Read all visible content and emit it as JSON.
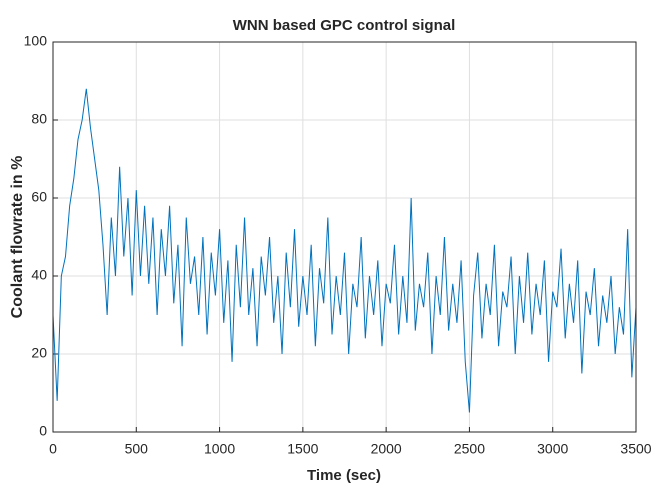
{
  "chart_data": {
    "type": "line",
    "title": "WNN based GPC control signal",
    "xlabel": "Time (sec)",
    "ylabel": "Coolant flowrate in %",
    "x": [
      0,
      25,
      50,
      75,
      100,
      125,
      150,
      175,
      200,
      225,
      250,
      275,
      300,
      325,
      350,
      375,
      400,
      425,
      450,
      475,
      500,
      525,
      550,
      575,
      600,
      625,
      650,
      675,
      700,
      725,
      750,
      775,
      800,
      825,
      850,
      875,
      900,
      925,
      950,
      975,
      1000,
      1025,
      1050,
      1075,
      1100,
      1125,
      1150,
      1175,
      1200,
      1225,
      1250,
      1275,
      1300,
      1325,
      1350,
      1375,
      1400,
      1425,
      1450,
      1475,
      1500,
      1525,
      1550,
      1575,
      1600,
      1625,
      1650,
      1675,
      1700,
      1725,
      1750,
      1775,
      1800,
      1825,
      1850,
      1875,
      1900,
      1925,
      1950,
      1975,
      2000,
      2025,
      2050,
      2075,
      2100,
      2125,
      2150,
      2175,
      2200,
      2225,
      2250,
      2275,
      2300,
      2325,
      2350,
      2375,
      2400,
      2425,
      2450,
      2475,
      2500,
      2525,
      2550,
      2575,
      2600,
      2625,
      2650,
      2675,
      2700,
      2725,
      2750,
      2775,
      2800,
      2825,
      2850,
      2875,
      2900,
      2925,
      2950,
      2975,
      3000,
      3025,
      3050,
      3075,
      3100,
      3125,
      3150,
      3175,
      3200,
      3225,
      3250,
      3275,
      3300,
      3325,
      3350,
      3375,
      3400,
      3425,
      3450,
      3475,
      3500
    ],
    "series": [
      {
        "name": "control signal",
        "color": "#0072bd",
        "values": [
          30,
          8,
          40,
          45,
          58,
          65,
          75,
          80,
          88,
          78,
          70,
          62,
          48,
          30,
          55,
          40,
          68,
          45,
          60,
          35,
          62,
          40,
          58,
          38,
          55,
          30,
          52,
          40,
          58,
          33,
          48,
          22,
          55,
          38,
          45,
          30,
          50,
          25,
          46,
          35,
          52,
          28,
          44,
          18,
          48,
          32,
          55,
          30,
          42,
          22,
          45,
          35,
          50,
          28,
          40,
          20,
          46,
          32,
          52,
          27,
          40,
          30,
          48,
          22,
          42,
          33,
          55,
          25,
          40,
          30,
          46,
          20,
          38,
          32,
          50,
          24,
          40,
          30,
          44,
          22,
          38,
          33,
          48,
          25,
          40,
          28,
          60,
          26,
          38,
          32,
          46,
          20,
          40,
          30,
          50,
          26,
          38,
          28,
          44,
          18,
          5,
          35,
          46,
          24,
          38,
          30,
          48,
          22,
          36,
          32,
          45,
          20,
          40,
          28,
          46,
          25,
          38,
          30,
          44,
          18,
          36,
          32,
          47,
          24,
          38,
          28,
          44,
          15,
          36,
          30,
          42,
          22,
          35,
          28,
          40,
          20,
          32,
          25,
          52,
          14,
          32
        ]
      }
    ],
    "xlim": [
      0,
      3500
    ],
    "ylim": [
      0,
      100
    ],
    "xticks": [
      0,
      500,
      1000,
      1500,
      2000,
      2500,
      3000,
      3500
    ],
    "yticks": [
      0,
      20,
      40,
      60,
      80,
      100
    ],
    "grid": true
  }
}
